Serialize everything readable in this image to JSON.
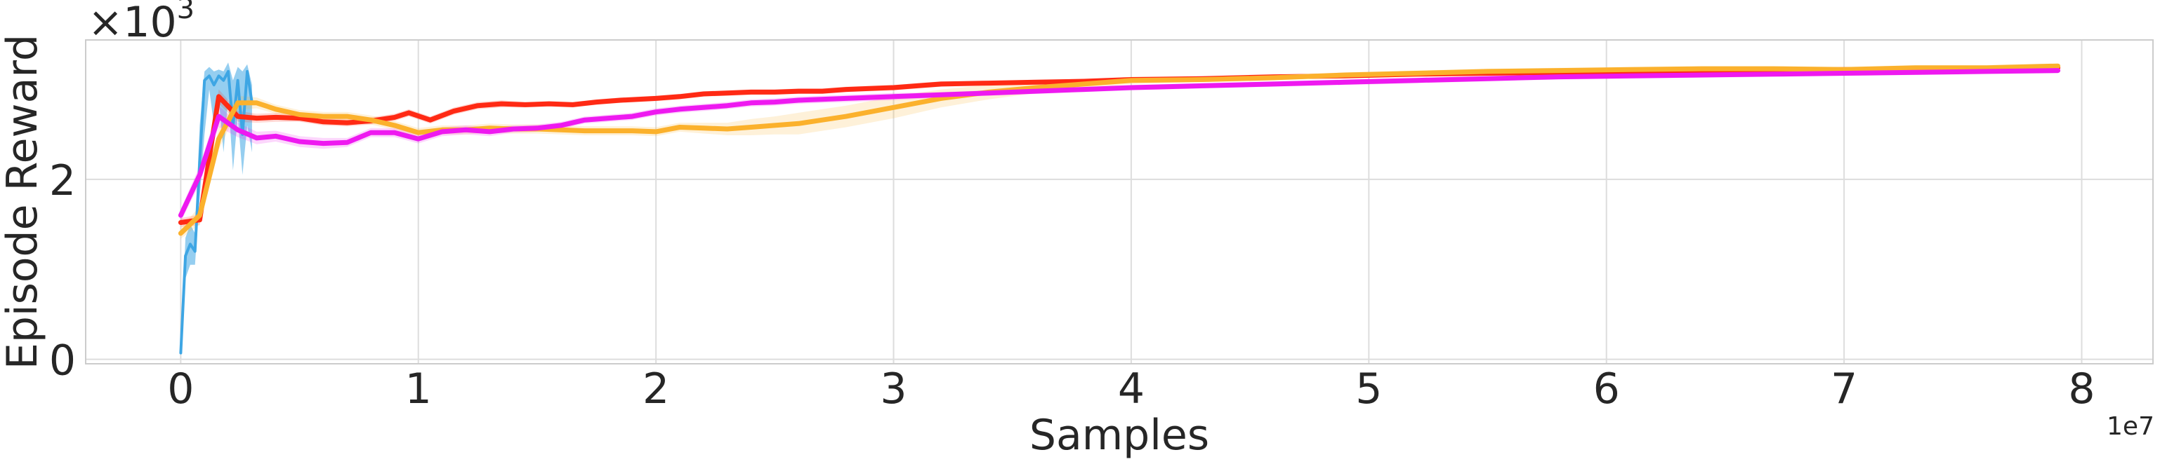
{
  "chart_data": {
    "type": "line",
    "title": "",
    "xlabel": "Samples",
    "ylabel": "Episode Reward",
    "x_offset_text": "1e7",
    "y_multiplier_text": "×10",
    "y_multiplier_exp": "3",
    "xlim": [
      -0.4,
      8.3
    ],
    "ylim": [
      -0.05,
      3.55
    ],
    "x_ticks": [
      0,
      1,
      2,
      3,
      4,
      5,
      6,
      7,
      8
    ],
    "x_tick_labels": [
      "0",
      "1",
      "2",
      "3",
      "4",
      "5",
      "6",
      "7",
      "8"
    ],
    "y_ticks": [
      0,
      2
    ],
    "y_tick_labels": [
      "0",
      "2"
    ],
    "grid": true,
    "legend": "none",
    "series": [
      {
        "color": "#3ea6e4",
        "band": true,
        "x": [
          0.0,
          0.02,
          0.04,
          0.06,
          0.08,
          0.1,
          0.12,
          0.14,
          0.16,
          0.18,
          0.2,
          0.22,
          0.24,
          0.26,
          0.28,
          0.3
        ],
        "y": [
          0.07,
          1.15,
          1.28,
          1.2,
          2.2,
          3.1,
          3.15,
          3.05,
          3.15,
          3.1,
          3.2,
          2.6,
          3.1,
          2.5,
          3.2,
          2.85
        ],
        "y_low": [
          0.05,
          0.9,
          1.05,
          1.05,
          1.8,
          2.5,
          3.0,
          2.6,
          2.9,
          2.3,
          2.9,
          2.1,
          2.7,
          2.05,
          2.6,
          2.3
        ],
        "y_high": [
          0.1,
          1.35,
          1.5,
          1.4,
          2.6,
          3.2,
          3.25,
          3.2,
          3.22,
          3.2,
          3.3,
          3.1,
          3.25,
          3.2,
          3.28,
          3.05
        ]
      },
      {
        "color": "#ff2a14",
        "band": true,
        "x": [
          0.0,
          0.08,
          0.16,
          0.24,
          0.32,
          0.4,
          0.5,
          0.6,
          0.7,
          0.8,
          0.9,
          0.96,
          1.05,
          1.15,
          1.25,
          1.35,
          1.45,
          1.55,
          1.65,
          1.75,
          1.85,
          2.0,
          2.1,
          2.2,
          2.3,
          2.4,
          2.5,
          2.6,
          2.7,
          2.8,
          2.9,
          3.0,
          3.1,
          3.2,
          3.4,
          3.6,
          3.8,
          4.0,
          4.3,
          4.6,
          4.9,
          5.2,
          5.5,
          5.8,
          6.1,
          6.4,
          6.7,
          7.0,
          7.3,
          7.6,
          7.9
        ],
        "y": [
          1.52,
          1.55,
          2.92,
          2.7,
          2.68,
          2.69,
          2.68,
          2.64,
          2.63,
          2.65,
          2.69,
          2.74,
          2.66,
          2.76,
          2.82,
          2.84,
          2.83,
          2.84,
          2.83,
          2.86,
          2.88,
          2.9,
          2.92,
          2.95,
          2.96,
          2.97,
          2.97,
          2.98,
          2.98,
          3.0,
          3.01,
          3.02,
          3.04,
          3.06,
          3.07,
          3.08,
          3.09,
          3.11,
          3.12,
          3.14,
          3.15,
          3.17,
          3.18,
          3.19,
          3.2,
          3.2,
          3.21,
          3.22,
          3.22,
          3.23,
          3.24
        ],
        "band_width": [
          0.05,
          0.06,
          0.08,
          0.06,
          0.05,
          0.05,
          0.04,
          0.04,
          0.04,
          0.04,
          0.04,
          0.04,
          0.04,
          0.04,
          0.04,
          0.04,
          0.03,
          0.03,
          0.03,
          0.03,
          0.03,
          0.03,
          0.03,
          0.03,
          0.03,
          0.03,
          0.03,
          0.03,
          0.03,
          0.03,
          0.03,
          0.03,
          0.03,
          0.03,
          0.02,
          0.02,
          0.02,
          0.02,
          0.02,
          0.02,
          0.02,
          0.02,
          0.02,
          0.02,
          0.02,
          0.02,
          0.02,
          0.02,
          0.02,
          0.02,
          0.02
        ]
      },
      {
        "color": "#fbb12c",
        "band": true,
        "x": [
          0.0,
          0.08,
          0.16,
          0.24,
          0.32,
          0.4,
          0.5,
          0.6,
          0.7,
          0.8,
          0.9,
          1.0,
          1.1,
          1.2,
          1.3,
          1.4,
          1.5,
          1.6,
          1.7,
          1.8,
          1.9,
          2.0,
          2.1,
          2.2,
          2.3,
          2.4,
          2.5,
          2.6,
          2.7,
          2.8,
          2.9,
          3.0,
          3.2,
          3.4,
          3.6,
          3.8,
          4.0,
          4.3,
          4.6,
          4.9,
          5.2,
          5.5,
          5.8,
          6.1,
          6.4,
          6.7,
          7.0,
          7.3,
          7.6,
          7.9
        ],
        "y": [
          1.4,
          1.6,
          2.45,
          2.85,
          2.85,
          2.78,
          2.72,
          2.7,
          2.7,
          2.66,
          2.6,
          2.52,
          2.55,
          2.55,
          2.57,
          2.56,
          2.56,
          2.55,
          2.54,
          2.54,
          2.54,
          2.53,
          2.58,
          2.57,
          2.56,
          2.58,
          2.6,
          2.62,
          2.66,
          2.7,
          2.75,
          2.8,
          2.9,
          2.97,
          3.02,
          3.06,
          3.1,
          3.11,
          3.13,
          3.16,
          3.18,
          3.2,
          3.21,
          3.22,
          3.23,
          3.23,
          3.22,
          3.24,
          3.24,
          3.26
        ],
        "band_width": [
          0.06,
          0.1,
          0.12,
          0.08,
          0.06,
          0.05,
          0.05,
          0.05,
          0.05,
          0.05,
          0.05,
          0.05,
          0.05,
          0.05,
          0.05,
          0.05,
          0.05,
          0.05,
          0.05,
          0.05,
          0.05,
          0.05,
          0.05,
          0.06,
          0.07,
          0.09,
          0.1,
          0.12,
          0.12,
          0.12,
          0.12,
          0.12,
          0.1,
          0.08,
          0.06,
          0.05,
          0.04,
          0.03,
          0.03,
          0.03,
          0.03,
          0.03,
          0.03,
          0.03,
          0.03,
          0.03,
          0.03,
          0.03,
          0.03,
          0.03
        ]
      },
      {
        "color": "#ee19f0",
        "band": true,
        "x": [
          0.0,
          0.08,
          0.16,
          0.24,
          0.32,
          0.4,
          0.5,
          0.6,
          0.7,
          0.8,
          0.9,
          1.0,
          1.1,
          1.2,
          1.3,
          1.4,
          1.5,
          1.6,
          1.7,
          1.8,
          1.9,
          2.0,
          2.1,
          2.2,
          2.3,
          2.4,
          2.5,
          2.6,
          2.8,
          3.0,
          3.2,
          3.4,
          3.6,
          3.8,
          4.0,
          4.3,
          4.6,
          4.9,
          5.2,
          5.5,
          5.8,
          6.1,
          6.4,
          6.7,
          7.0,
          7.3,
          7.6,
          7.9
        ],
        "y": [
          1.6,
          2.05,
          2.7,
          2.55,
          2.46,
          2.48,
          2.42,
          2.4,
          2.41,
          2.52,
          2.52,
          2.45,
          2.53,
          2.55,
          2.53,
          2.56,
          2.57,
          2.6,
          2.66,
          2.68,
          2.7,
          2.75,
          2.78,
          2.8,
          2.82,
          2.85,
          2.86,
          2.88,
          2.9,
          2.92,
          2.94,
          2.96,
          2.98,
          3.0,
          3.02,
          3.04,
          3.06,
          3.08,
          3.1,
          3.12,
          3.14,
          3.15,
          3.16,
          3.17,
          3.18,
          3.19,
          3.2,
          3.21
        ],
        "band_width": [
          0.07,
          0.1,
          0.12,
          0.08,
          0.07,
          0.06,
          0.06,
          0.06,
          0.05,
          0.05,
          0.05,
          0.05,
          0.05,
          0.05,
          0.05,
          0.04,
          0.04,
          0.04,
          0.04,
          0.04,
          0.04,
          0.04,
          0.04,
          0.04,
          0.04,
          0.04,
          0.04,
          0.04,
          0.04,
          0.04,
          0.03,
          0.03,
          0.03,
          0.03,
          0.03,
          0.03,
          0.03,
          0.03,
          0.03,
          0.03,
          0.03,
          0.03,
          0.03,
          0.03,
          0.03,
          0.03,
          0.03,
          0.03
        ]
      }
    ]
  }
}
